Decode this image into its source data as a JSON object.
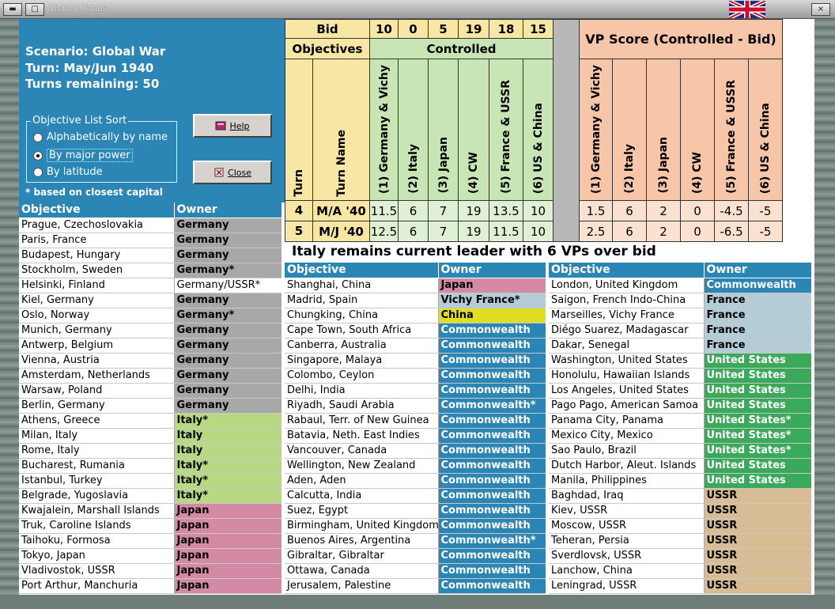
{
  "window": {
    "title": "Victory Totals"
  },
  "info": {
    "scenario": "Scenario: Global War",
    "turn": "Turn: May/Jun 1940",
    "turns_remaining": "Turns remaining: 50",
    "sort_title": "Objective List Sort",
    "sort_options": [
      "Alphabetically by name",
      "By major power",
      "By latitude"
    ],
    "selected_index": 1,
    "footnote": "* based on closest capital"
  },
  "buttons": {
    "help": "Help",
    "close": "Close"
  },
  "colors": {
    "header_blue": "#2c86b5",
    "germany": "#a8a8a8",
    "italy": "#b8d883",
    "japan": "#d48aa4",
    "china": "#e0dd25",
    "commonwealth": "#2c86b5",
    "france": "#b4ccd8",
    "us": "#3aaa5a",
    "ussr": "#d8bd94",
    "controlled": "#c8e5b5",
    "score": "#f7c6a8",
    "bid": "#f8e6a5"
  },
  "score_table": {
    "bid_label": "Bid",
    "objectives_label": "Objectives",
    "controlled_label": "Controlled",
    "vp_label": "VP Score (Controlled - Bid)",
    "turn_label": "Turn",
    "turn_name_label": "Turn Name",
    "powers": [
      "(1) Germany & Vichy",
      "(2) Italy",
      "(3) Japan",
      "(4) CW",
      "(5) France & USSR",
      "(6) US & China"
    ],
    "bids": [
      "10",
      "0",
      "5",
      "19",
      "18",
      "15"
    ],
    "rows": [
      {
        "turn": "4",
        "name": "M/A '40",
        "controlled": [
          "11.5",
          "6",
          "7",
          "19",
          "13.5",
          "10"
        ],
        "score": [
          "1.5",
          "6",
          "2",
          "0",
          "-4.5",
          "-5"
        ]
      },
      {
        "turn": "5",
        "name": "M/J '40",
        "controlled": [
          "12.5",
          "6",
          "7",
          "19",
          "11.5",
          "10"
        ],
        "score": [
          "2.5",
          "6",
          "2",
          "0",
          "-6.5",
          "-5"
        ]
      }
    ]
  },
  "leader_message": "Italy remains current leader with 6 VPs over bid",
  "list_headers": {
    "objective": "Objective",
    "owner": "Owner"
  },
  "columns": [
    [
      [
        "Prague, Czechoslovakia",
        "Germany",
        "germany"
      ],
      [
        "Paris, France",
        "Germany",
        "germany"
      ],
      [
        "Budapest, Hungary",
        "Germany",
        "germany"
      ],
      [
        "Stockholm, Sweden",
        "Germany*",
        "germany"
      ],
      [
        "Helsinki, Finland",
        "Germany/USSR*",
        "plain"
      ],
      [
        "Kiel, Germany",
        "Germany",
        "germany"
      ],
      [
        "Oslo, Norway",
        "Germany*",
        "germany"
      ],
      [
        "Munich, Germany",
        "Germany",
        "germany"
      ],
      [
        "Antwerp, Belgium",
        "Germany",
        "germany"
      ],
      [
        "Vienna, Austria",
        "Germany",
        "germany"
      ],
      [
        "Amsterdam, Netherlands",
        "Germany",
        "germany"
      ],
      [
        "Warsaw, Poland",
        "Germany",
        "germany"
      ],
      [
        "Berlin, Germany",
        "Germany",
        "germany"
      ],
      [
        "Athens, Greece",
        "Italy*",
        "italy"
      ],
      [
        "Milan, Italy",
        "Italy",
        "italy"
      ],
      [
        "Rome, Italy",
        "Italy",
        "italy"
      ],
      [
        "Bucharest, Rumania",
        "Italy*",
        "italy"
      ],
      [
        "Istanbul, Turkey",
        "Italy*",
        "italy"
      ],
      [
        "Belgrade, Yugoslavia",
        "Italy*",
        "italy"
      ],
      [
        "Kwajalein, Marshall Islands",
        "Japan",
        "japan"
      ],
      [
        "Truk, Caroline Islands",
        "Japan",
        "japan"
      ],
      [
        "Taihoku, Formosa",
        "Japan",
        "japan"
      ],
      [
        "Tokyo, Japan",
        "Japan",
        "japan"
      ],
      [
        "Vladivostok, USSR",
        "Japan",
        "japan"
      ],
      [
        "Port Arthur, Manchuria",
        "Japan",
        "japan"
      ]
    ],
    [
      [
        "Shanghai, China",
        "Japan",
        "japan"
      ],
      [
        "Madrid, Spain",
        "Vichy France*",
        "france"
      ],
      [
        "Chungking, China",
        "China",
        "china"
      ],
      [
        "Cape Town, South Africa",
        "Commonwealth",
        "commonwealth"
      ],
      [
        "Canberra, Australia",
        "Commonwealth",
        "commonwealth"
      ],
      [
        "Singapore, Malaya",
        "Commonwealth",
        "commonwealth"
      ],
      [
        "Colombo, Ceylon",
        "Commonwealth",
        "commonwealth"
      ],
      [
        "Delhi, India",
        "Commonwealth",
        "commonwealth"
      ],
      [
        "Riyadh, Saudi Arabia",
        "Commonwealth*",
        "commonwealth"
      ],
      [
        "Rabaul, Terr. of New Guinea",
        "Commonwealth",
        "commonwealth"
      ],
      [
        "Batavia, Neth. East Indies",
        "Commonwealth",
        "commonwealth"
      ],
      [
        "Vancouver, Canada",
        "Commonwealth",
        "commonwealth"
      ],
      [
        "Wellington, New Zealand",
        "Commonwealth",
        "commonwealth"
      ],
      [
        "Aden, Aden",
        "Commonwealth",
        "commonwealth"
      ],
      [
        "Calcutta, India",
        "Commonwealth",
        "commonwealth"
      ],
      [
        "Suez, Egypt",
        "Commonwealth",
        "commonwealth"
      ],
      [
        "Birmingham, United Kingdom",
        "Commonwealth",
        "commonwealth"
      ],
      [
        "Buenos Aires, Argentina",
        "Commonwealth*",
        "commonwealth"
      ],
      [
        "Gibraltar, Gibraltar",
        "Commonwealth",
        "commonwealth"
      ],
      [
        "Ottawa, Canada",
        "Commonwealth",
        "commonwealth"
      ],
      [
        "Jerusalem, Palestine",
        "Commonwealth",
        "commonwealth"
      ]
    ],
    [
      [
        "London, United Kingdom",
        "Commonwealth",
        "commonwealth"
      ],
      [
        "Saigon, French Indo-China",
        "France",
        "france"
      ],
      [
        "Marseilles, Vichy France",
        "France",
        "france"
      ],
      [
        "Diégo Suarez, Madagascar",
        "France",
        "france"
      ],
      [
        "Dakar, Senegal",
        "France",
        "france"
      ],
      [
        "Washington, United States",
        "United States",
        "us"
      ],
      [
        "Honolulu, Hawaiian Islands",
        "United States",
        "us"
      ],
      [
        "Los Angeles, United States",
        "United States",
        "us"
      ],
      [
        "Pago Pago, American Samoa",
        "United States",
        "us"
      ],
      [
        "Panama City, Panama",
        "United States*",
        "us"
      ],
      [
        "Mexico City, Mexico",
        "United States*",
        "us"
      ],
      [
        "Sao Paulo, Brazil",
        "United States*",
        "us"
      ],
      [
        "Dutch Harbor, Aleut. Islands",
        "United States",
        "us"
      ],
      [
        "Manila, Philippines",
        "United States",
        "us"
      ],
      [
        "Baghdad, Iraq",
        "USSR",
        "ussr"
      ],
      [
        "Kiev, USSR",
        "USSR",
        "ussr"
      ],
      [
        "Moscow, USSR",
        "USSR",
        "ussr"
      ],
      [
        "Teheran, Persia",
        "USSR",
        "ussr"
      ],
      [
        "Sverdlovsk, USSR",
        "USSR",
        "ussr"
      ],
      [
        "Lanchow, China",
        "USSR",
        "ussr"
      ],
      [
        "Leningrad, USSR",
        "USSR",
        "ussr"
      ]
    ]
  ]
}
